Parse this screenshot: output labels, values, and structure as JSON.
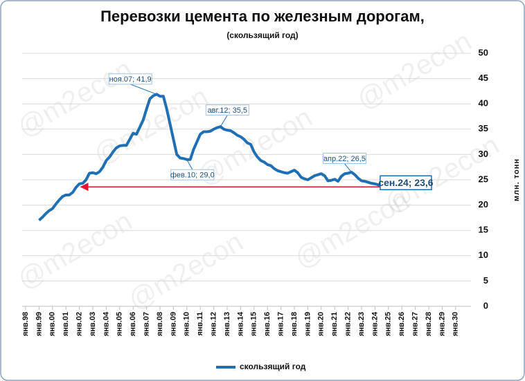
{
  "chart_data": {
    "type": "line",
    "title": "Перевозки цемента по железным дорогам,",
    "subtitle": "(скользящий год)",
    "y_axis_label": "млн. тонн",
    "watermark": "@m2econ",
    "categories": [
      "янв.98",
      null,
      null,
      null,
      "янв.99",
      null,
      null,
      null,
      "янв.00",
      null,
      null,
      null,
      "янв.01",
      null,
      null,
      null,
      "янв.02",
      null,
      null,
      null,
      "янв.03",
      null,
      null,
      null,
      "янв.04",
      null,
      null,
      null,
      "янв.05",
      null,
      null,
      null,
      "янв.06",
      null,
      null,
      null,
      "янв.07",
      null,
      null,
      null,
      "янв.08",
      null,
      null,
      null,
      "янв.09",
      null,
      null,
      null,
      "янв.10",
      null,
      null,
      null,
      "янв.11",
      null,
      null,
      null,
      "янв.12",
      null,
      null,
      null,
      "янв.13",
      null,
      null,
      null,
      "янв.14",
      null,
      null,
      null,
      "янв.15",
      null,
      null,
      null,
      "янв.16",
      null,
      null,
      null,
      "янв.17",
      null,
      null,
      null,
      "янв.18",
      null,
      null,
      null,
      "янв.19",
      null,
      null,
      null,
      "янв.20",
      null,
      null,
      null,
      "янв.21",
      null,
      null,
      null,
      "янв.22",
      null,
      null,
      null,
      "янв.23",
      null,
      null,
      null,
      "янв.24",
      null,
      null,
      null,
      "янв.25",
      null,
      null,
      null,
      "янв.26",
      null,
      null,
      null,
      "янв.27",
      null,
      null,
      null,
      "янв.28",
      null,
      null,
      null,
      "янв.29",
      null,
      null,
      null,
      "янв.30"
    ],
    "series": [
      {
        "name": "скользящий год",
        "color": "#1f6fb4",
        "values": [
          null,
          null,
          null,
          null,
          17.0,
          17.6,
          18.3,
          18.9,
          19.3,
          20.2,
          21.0,
          21.7,
          22.0,
          22.0,
          22.5,
          23.5,
          24.2,
          24.3,
          25.0,
          26.3,
          26.4,
          26.2,
          26.6,
          27.5,
          28.8,
          29.5,
          30.5,
          31.3,
          31.7,
          31.8,
          31.8,
          33.0,
          34.2,
          34.0,
          35.4,
          36.8,
          39.0,
          41.0,
          41.6,
          41.9,
          41.5,
          41.5,
          39.0,
          36.0,
          33.0,
          30.0,
          29.3,
          29.2,
          29.0,
          29.0,
          31.0,
          32.5,
          34.0,
          34.5,
          34.5,
          34.6,
          35.0,
          35.3,
          35.5,
          35.0,
          34.8,
          34.7,
          34.3,
          33.8,
          33.5,
          33.0,
          32.3,
          32.0,
          30.5,
          29.5,
          28.8,
          28.5,
          28.0,
          27.8,
          27.2,
          26.8,
          26.6,
          26.4,
          26.3,
          26.6,
          26.9,
          26.4,
          25.5,
          25.2,
          25.0,
          25.4,
          25.8,
          26.0,
          26.2,
          25.8,
          24.8,
          24.9,
          25.1,
          24.7,
          25.7,
          26.2,
          26.3,
          26.5,
          26.0,
          25.3,
          24.8,
          24.7,
          24.5,
          24.3,
          24.2,
          24.0,
          23.8,
          23.6,
          null,
          null,
          null,
          null,
          null,
          null,
          null,
          null,
          null,
          null,
          null,
          null,
          null,
          null,
          null,
          null,
          null,
          null,
          null,
          null,
          null
        ]
      }
    ],
    "annotations": [
      {
        "label": "ноя.07; 41,9",
        "value": 41.9
      },
      {
        "label": "фев.10; 29,0",
        "value": 29.0
      },
      {
        "label": "авг.12; 35,5",
        "value": 35.5
      },
      {
        "label": "апр.22; 26,5",
        "value": 26.5
      },
      {
        "label": "сен.24; 23,6",
        "value": 23.6
      }
    ],
    "arrow_color": "#e8112d",
    "ylim": [
      0,
      50
    ],
    "yticks": [
      0,
      5,
      10,
      15,
      20,
      25,
      30,
      35,
      40,
      45,
      50
    ],
    "grid": true,
    "legend": "bottom"
  }
}
